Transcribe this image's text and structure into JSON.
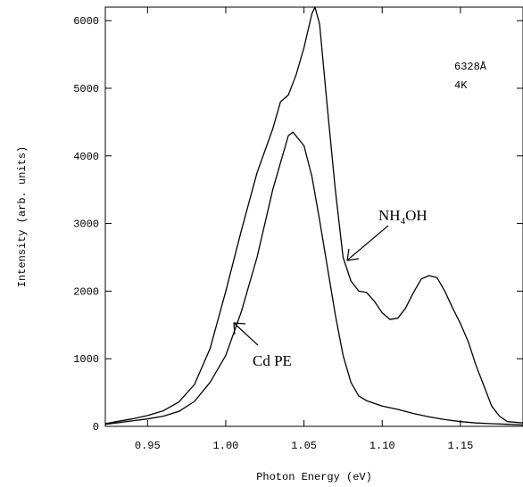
{
  "chart_data": {
    "type": "line",
    "title": "",
    "xlabel": "Photon Energy (eV)",
    "ylabel": "Intensity (arb. units)",
    "xlim": [
      0.923,
      1.19
    ],
    "ylim": [
      0,
      6200
    ],
    "xticks": [
      "0.95",
      "1.00",
      "1.05",
      "1.10",
      "1.15"
    ],
    "yticks": [
      "0",
      "1000",
      "2000",
      "3000",
      "4000",
      "5000",
      "6000"
    ],
    "grid": false,
    "legend": "none",
    "annotations": {
      "conditions_line1": "6328Å",
      "conditions_line2": "4K",
      "nh4oh_label_prefix": "NH",
      "nh4oh_label_sub": "4",
      "nh4oh_label_suffix": "OH",
      "cdpe_label": "Cd PE"
    },
    "series": [
      {
        "label": "NH4OH",
        "points": [
          [
            0.923,
            40
          ],
          [
            0.93,
            70
          ],
          [
            0.94,
            110
          ],
          [
            0.95,
            160
          ],
          [
            0.96,
            230
          ],
          [
            0.97,
            360
          ],
          [
            0.98,
            620
          ],
          [
            0.99,
            1150
          ],
          [
            1.0,
            2000
          ],
          [
            1.01,
            2900
          ],
          [
            1.02,
            3750
          ],
          [
            1.03,
            4400
          ],
          [
            1.035,
            4800
          ],
          [
            1.04,
            4900
          ],
          [
            1.045,
            5200
          ],
          [
            1.05,
            5600
          ],
          [
            1.055,
            6100
          ],
          [
            1.057,
            6200
          ],
          [
            1.06,
            5950
          ],
          [
            1.065,
            4700
          ],
          [
            1.07,
            3500
          ],
          [
            1.075,
            2500
          ],
          [
            1.08,
            2150
          ],
          [
            1.085,
            2000
          ],
          [
            1.09,
            1980
          ],
          [
            1.095,
            1850
          ],
          [
            1.1,
            1680
          ],
          [
            1.105,
            1580
          ],
          [
            1.11,
            1600
          ],
          [
            1.115,
            1750
          ],
          [
            1.12,
            1980
          ],
          [
            1.125,
            2180
          ],
          [
            1.13,
            2230
          ],
          [
            1.135,
            2200
          ],
          [
            1.14,
            2000
          ],
          [
            1.145,
            1750
          ],
          [
            1.15,
            1520
          ],
          [
            1.155,
            1250
          ],
          [
            1.16,
            900
          ],
          [
            1.165,
            600
          ],
          [
            1.17,
            300
          ],
          [
            1.175,
            150
          ],
          [
            1.18,
            70
          ],
          [
            1.19,
            50
          ]
        ]
      },
      {
        "label": "Cd PE",
        "points": [
          [
            0.923,
            30
          ],
          [
            0.93,
            50
          ],
          [
            0.94,
            80
          ],
          [
            0.95,
            110
          ],
          [
            0.96,
            150
          ],
          [
            0.97,
            220
          ],
          [
            0.98,
            370
          ],
          [
            0.99,
            650
          ],
          [
            1.0,
            1050
          ],
          [
            1.01,
            1700
          ],
          [
            1.02,
            2500
          ],
          [
            1.03,
            3500
          ],
          [
            1.035,
            3900
          ],
          [
            1.04,
            4300
          ],
          [
            1.043,
            4350
          ],
          [
            1.05,
            4150
          ],
          [
            1.055,
            3700
          ],
          [
            1.06,
            3050
          ],
          [
            1.065,
            2350
          ],
          [
            1.07,
            1650
          ],
          [
            1.075,
            1050
          ],
          [
            1.08,
            650
          ],
          [
            1.085,
            450
          ],
          [
            1.09,
            380
          ],
          [
            1.1,
            300
          ],
          [
            1.11,
            250
          ],
          [
            1.12,
            190
          ],
          [
            1.13,
            140
          ],
          [
            1.14,
            100
          ],
          [
            1.15,
            70
          ],
          [
            1.16,
            50
          ],
          [
            1.17,
            40
          ],
          [
            1.18,
            30
          ],
          [
            1.19,
            20
          ]
        ]
      }
    ]
  }
}
